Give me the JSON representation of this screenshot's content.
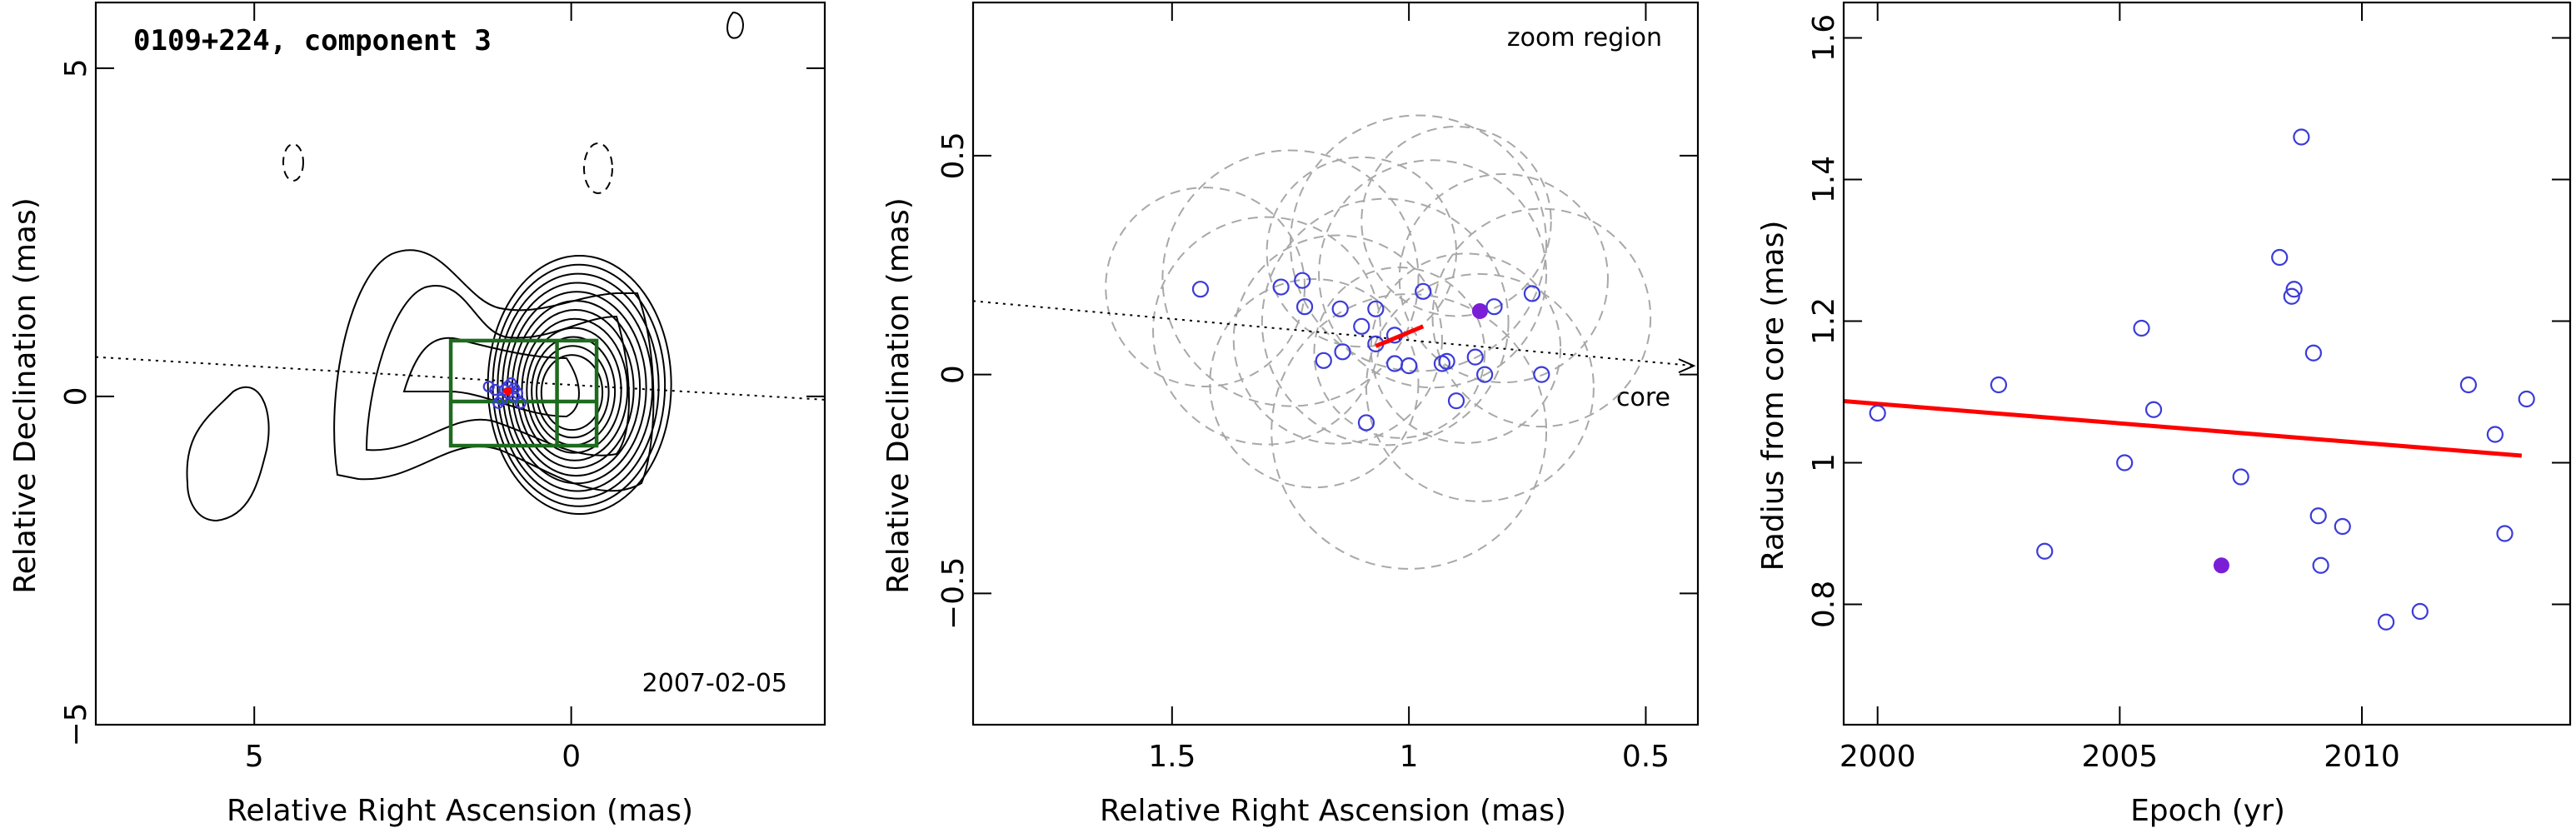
{
  "chart_data": [
    {
      "type": "scatter",
      "panel": "contour-map",
      "title": "0109+224, component 3",
      "date": "2007-02-05",
      "xlabel": "Relative Right Ascension (mas)",
      "ylabel": "Relative Declination (mas)",
      "xlim": [
        7.5,
        -4
      ],
      "ylim": [
        -5,
        6
      ],
      "xticks": [
        5,
        0
      ],
      "yticks": [
        -5,
        0,
        5
      ],
      "xticklabels": [
        "5",
        "0"
      ],
      "yticklabels": [
        "−5",
        "0",
        "5"
      ],
      "zoom_box": {
        "ra": [
          1.9,
          -0.4
        ],
        "dec": [
          -0.75,
          0.85
        ]
      },
      "positions": {
        "x": [
          1.2,
          1.0,
          0.9,
          1.1,
          0.95,
          1.05,
          0.85,
          0.8,
          1.3,
          1.15,
          0.9,
          1.0
        ],
        "y": [
          0.1,
          0.15,
          0.0,
          -0.05,
          0.2,
          0.1,
          0.05,
          -0.1,
          0.15,
          -0.1,
          0.12,
          0.05
        ]
      },
      "trajectory": {
        "x": [
          7.5,
          -4
        ],
        "y": [
          0.6,
          -0.05
        ]
      }
    },
    {
      "type": "scatter",
      "panel": "zoom-region",
      "annotation": "zoom region",
      "core_label": "core",
      "xlabel": "Relative Right Ascension (mas)",
      "ylabel": "Relative Declination (mas)",
      "xlim": [
        1.92,
        0.39
      ],
      "ylim": [
        -0.8,
        0.85
      ],
      "xticks": [
        1.5,
        1,
        0.5
      ],
      "yticks": [
        -0.5,
        0,
        0.5
      ],
      "xticklabels": [
        "1.5",
        "1",
        "0.5"
      ],
      "yticklabels": [
        "−0.5",
        "0",
        "0.5"
      ],
      "x": [
        1.44,
        1.27,
        1.225,
        1.22,
        1.18,
        1.145,
        1.14,
        1.1,
        1.09,
        1.07,
        1.07,
        1.03,
        1.03,
        1.0,
        0.97,
        0.93,
        0.92,
        0.9,
        0.86,
        0.84,
        0.82,
        0.74,
        0.72
      ],
      "y": [
        0.195,
        0.2,
        0.215,
        0.155,
        0.032,
        0.15,
        0.052,
        0.11,
        -0.11,
        0.07,
        0.15,
        0.09,
        0.025,
        0.02,
        0.19,
        0.025,
        0.03,
        -0.06,
        0.04,
        0.0,
        0.155,
        0.185,
        0.0
      ],
      "highlight": {
        "x": 0.85,
        "y": 0.145
      },
      "trend": {
        "x": [
          1.07,
          0.97
        ],
        "y": [
          0.065,
          0.11
        ]
      },
      "trajectory": {
        "x": [
          1.92,
          0.39
        ],
        "y": [
          0.168,
          0.02
        ]
      },
      "circles": [
        {
          "x": 1.43,
          "y": 0.2,
          "r": 0.21
        },
        {
          "x": 1.25,
          "y": 0.22,
          "r": 0.27
        },
        {
          "x": 1.15,
          "y": 0.08,
          "r": 0.22
        },
        {
          "x": 1.05,
          "y": 0.12,
          "r": 0.26
        },
        {
          "x": 1.0,
          "y": -0.13,
          "r": 0.29
        },
        {
          "x": 0.95,
          "y": 0.23,
          "r": 0.24
        },
        {
          "x": 0.88,
          "y": 0.06,
          "r": 0.2
        },
        {
          "x": 0.8,
          "y": 0.22,
          "r": 0.22
        },
        {
          "x": 0.72,
          "y": 0.13,
          "r": 0.23
        },
        {
          "x": 1.1,
          "y": 0.28,
          "r": 0.2
        },
        {
          "x": 1.2,
          "y": -0.02,
          "r": 0.22
        },
        {
          "x": 0.9,
          "y": 0.35,
          "r": 0.2
        },
        {
          "x": 0.85,
          "y": -0.03,
          "r": 0.24
        },
        {
          "x": 1.02,
          "y": 0.05,
          "r": 0.18
        },
        {
          "x": 1.3,
          "y": 0.1,
          "r": 0.24
        },
        {
          "x": 0.98,
          "y": 0.3,
          "r": 0.27
        }
      ]
    },
    {
      "type": "scatter",
      "panel": "radius-vs-epoch",
      "xlabel": "Epoch (yr)",
      "ylabel": "Radius from core (mas)",
      "xlim": [
        1999.3,
        2014.3
      ],
      "ylim": [
        0.63,
        1.65
      ],
      "xticks": [
        2000,
        2005,
        2010
      ],
      "yticks": [
        0.8,
        1,
        1.2,
        1.4,
        1.6
      ],
      "xticklabels": [
        "2000",
        "2005",
        "2010"
      ],
      "yticklabels": [
        "0.8",
        "1",
        "1.2",
        "1.4",
        "1.6"
      ],
      "x": [
        2000.0,
        2002.5,
        2003.45,
        2005.1,
        2005.45,
        2005.7,
        2007.5,
        2008.3,
        2008.55,
        2008.6,
        2008.75,
        2009.0,
        2009.1,
        2009.15,
        2009.6,
        2010.5,
        2011.2,
        2012.2,
        2012.75,
        2012.95,
        2013.4
      ],
      "y": [
        1.07,
        1.11,
        0.875,
        1.0,
        1.19,
        1.075,
        0.98,
        1.29,
        1.235,
        1.245,
        1.46,
        1.155,
        0.925,
        0.855,
        0.91,
        0.775,
        0.79,
        1.11,
        1.04,
        0.9,
        1.09
      ],
      "highlight": {
        "x": 2007.1,
        "y": 0.855
      },
      "fit": {
        "x": [
          1999.3,
          2013.3
        ],
        "y": [
          1.087,
          1.01
        ]
      }
    }
  ]
}
